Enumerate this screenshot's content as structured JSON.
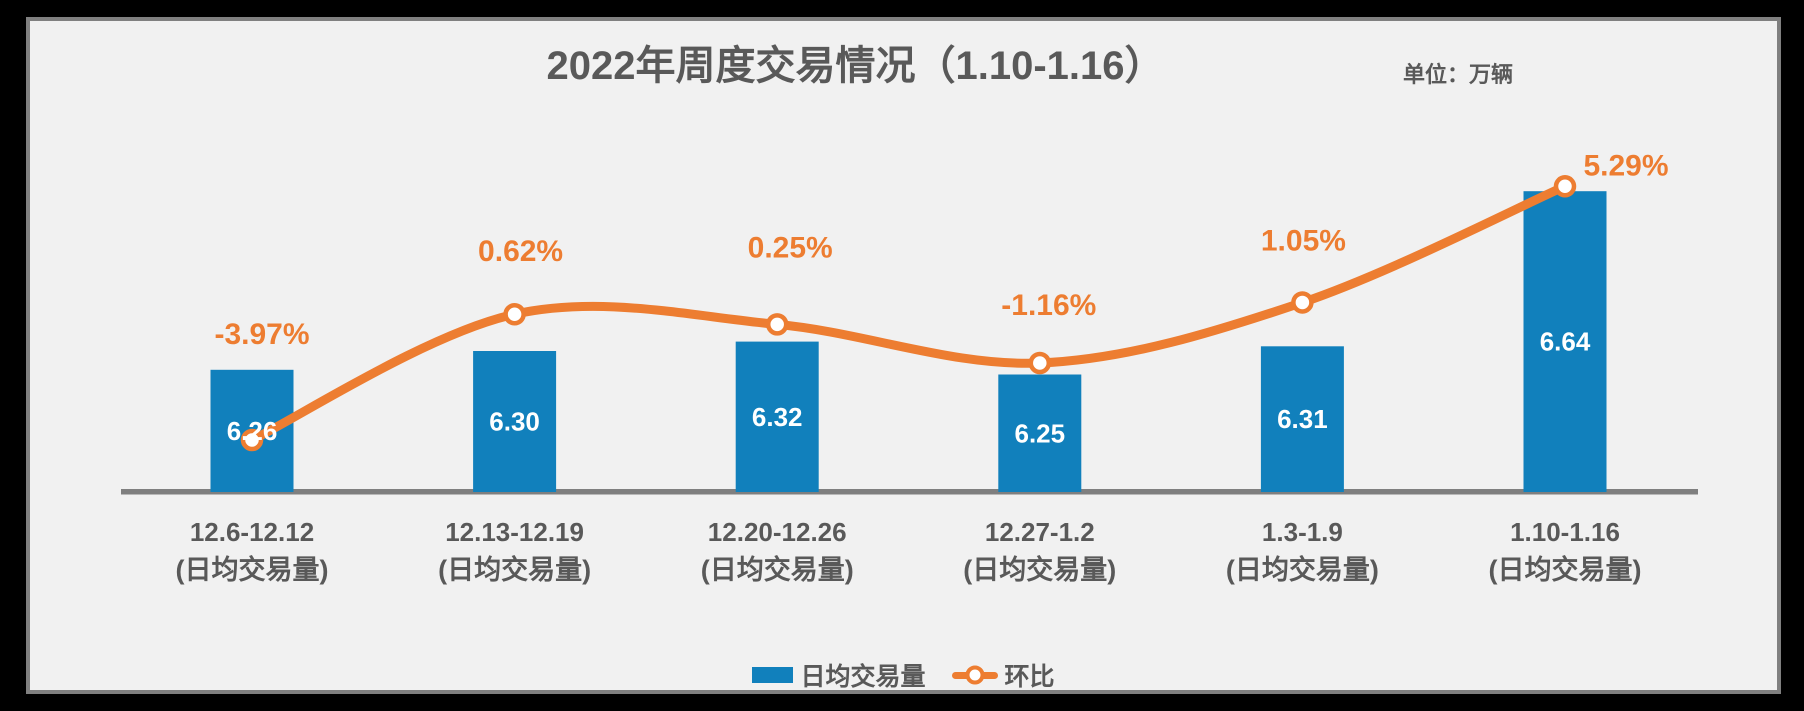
{
  "window": {
    "frame_color": "#000000",
    "canvas_color": "#F1F1F1",
    "canvas_border_color": "#808080",
    "text_color": "#595959"
  },
  "header": {
    "title": "2022年周度交易情况（1.10-1.16）",
    "unit_label": "单位：万辆"
  },
  "chart_data": {
    "type": "bar+line",
    "title": "2022年周度交易情况（1.10-1.16）",
    "unit": "万辆",
    "categories": [
      "12.6-12.12",
      "12.13-12.19",
      "12.20-12.26",
      "12.27-1.2",
      "1.3-1.9",
      "1.10-1.16"
    ],
    "category_sublabels": [
      "(日均交易量)",
      "(日均交易量)",
      "(日均交易量)",
      "(日均交易量)",
      "(日均交易量)",
      "(日均交易量)"
    ],
    "series": [
      {
        "name": "日均交易量",
        "chart_type": "bar",
        "values": [
          6.26,
          6.3,
          6.32,
          6.25,
          6.31,
          6.64
        ],
        "value_labels": [
          "6.26",
          "6.30",
          "6.32",
          "6.25",
          "6.31",
          "6.64"
        ],
        "color": "#1180BC",
        "value_label_color": "#FFFFFF"
      },
      {
        "name": "环比",
        "chart_type": "line",
        "values_pct": [
          -3.97,
          0.62,
          0.25,
          -1.16,
          1.05,
          5.29
        ],
        "value_labels": [
          "-3.97%",
          "0.62%",
          "0.25%",
          "-1.16%",
          "1.05%",
          "5.29%"
        ],
        "color": "#ED7D31",
        "marker": "open-circle"
      }
    ],
    "axes": {
      "x_axis_line": true,
      "x_axis_color": "#7F7F7F",
      "y_axis_visible": false,
      "gridlines": false,
      "bar_baseline_value": 6.0
    },
    "legend": {
      "position": "bottom",
      "entries": [
        "日均交易量",
        "环比"
      ]
    },
    "text_color": "#595959"
  }
}
